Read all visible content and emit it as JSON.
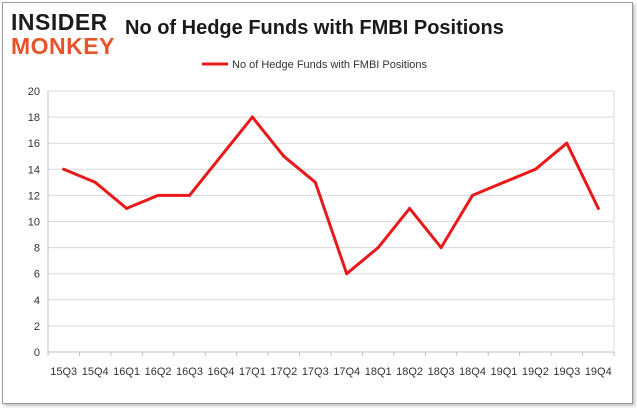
{
  "logo": {
    "line1": "INSIDER",
    "line2": "MONKEY"
  },
  "colors": {
    "series": "#e8191a",
    "grid": "#d9d9d9",
    "axis": "#bfbfbf",
    "text": "#333333",
    "logo_accent": "#e8542a"
  },
  "chart_data": {
    "type": "line",
    "title": "No of Hedge Funds with FMBI Positions",
    "xlabel": "",
    "ylabel": "",
    "categories": [
      "15Q3",
      "15Q4",
      "16Q1",
      "16Q2",
      "16Q3",
      "16Q4",
      "17Q1",
      "17Q2",
      "17Q3",
      "17Q4",
      "18Q1",
      "18Q2",
      "18Q3",
      "18Q4",
      "19Q1",
      "19Q2",
      "19Q3",
      "19Q4"
    ],
    "series": [
      {
        "name": "No of Hedge Funds with FMBI Positions",
        "values": [
          14,
          13,
          11,
          12,
          12,
          15,
          18,
          15,
          13,
          6,
          8,
          11,
          8,
          12,
          13,
          14,
          16,
          11
        ]
      }
    ],
    "ylim": [
      0,
      20
    ],
    "yticks": [
      0,
      2,
      4,
      6,
      8,
      10,
      12,
      14,
      16,
      18,
      20
    ],
    "grid": true,
    "legend": "top-center"
  }
}
